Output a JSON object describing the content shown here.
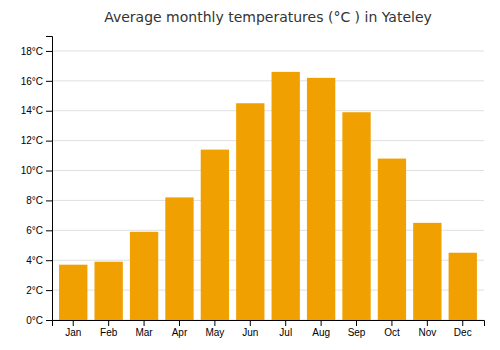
{
  "chart_data": {
    "type": "bar",
    "title": "Average monthly temperatures (°C ) in Yateley",
    "categories": [
      "Jan",
      "Feb",
      "Mar",
      "Apr",
      "May",
      "Jun",
      "Jul",
      "Aug",
      "Sep",
      "Oct",
      "Nov",
      "Dec"
    ],
    "values": [
      3.7,
      3.9,
      5.9,
      8.2,
      11.4,
      14.5,
      16.6,
      16.2,
      13.9,
      10.8,
      6.5,
      4.5
    ],
    "color": "#F0A000",
    "ylim": [
      0,
      19
    ],
    "yticks": [
      {
        "value": 0,
        "label": "0°C"
      },
      {
        "value": 2,
        "label": "2°C"
      },
      {
        "value": 4,
        "label": "4°C"
      },
      {
        "value": 6,
        "label": "6°C"
      },
      {
        "value": 8,
        "label": "8°C"
      },
      {
        "value": 10,
        "label": "10°C"
      },
      {
        "value": 12,
        "label": "12°C"
      },
      {
        "value": 14,
        "label": "14°C"
      },
      {
        "value": 16,
        "label": "16°C"
      },
      {
        "value": 18,
        "label": "18°C"
      }
    ],
    "grid": true
  }
}
